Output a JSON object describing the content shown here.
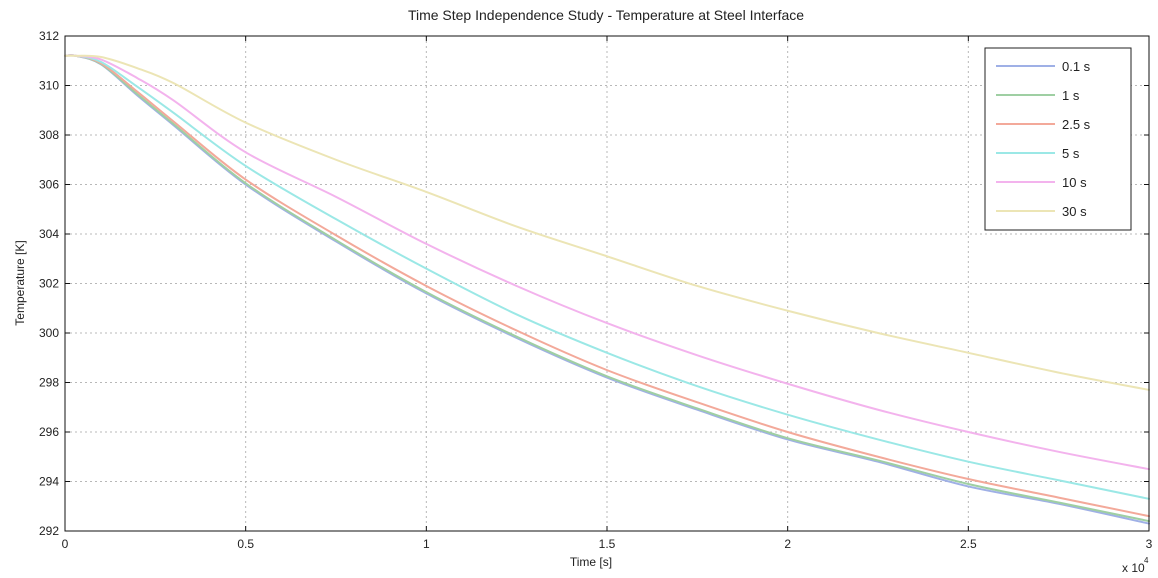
{
  "chart_data": {
    "type": "line",
    "title": "Time Step Independence Study - Temperature at Steel Interface",
    "xlabel": "Time [s]",
    "ylabel": "Temperature [K]",
    "x_multiplier_label": "x 10",
    "x_multiplier_exponent": "4",
    "xlim": [
      0,
      3
    ],
    "ylim": [
      292,
      312
    ],
    "x_ticks": [
      0,
      0.5,
      1,
      1.5,
      2,
      2.5,
      3
    ],
    "x_tick_labels": [
      "0",
      "0.5",
      "1",
      "1.5",
      "2",
      "2.5",
      "3"
    ],
    "y_ticks": [
      292,
      294,
      296,
      298,
      300,
      302,
      304,
      306,
      308,
      310,
      312
    ],
    "y_tick_labels": [
      "292",
      "294",
      "296",
      "298",
      "300",
      "302",
      "304",
      "306",
      "308",
      "310",
      "312"
    ],
    "grid": true,
    "legend_position": "top-right",
    "series": [
      {
        "name": "0.1 s",
        "color": "#9fb0e6",
        "x": [
          0,
          0.03,
          0.1,
          0.2,
          0.3,
          0.5,
          0.75,
          1,
          1.25,
          1.5,
          1.75,
          2,
          2.25,
          2.5,
          2.75,
          3
        ],
        "y": [
          311.2,
          311.2,
          310.85,
          309.6,
          308.4,
          306,
          303.7,
          301.6,
          299.8,
          298.2,
          296.9,
          295.7,
          294.8,
          293.8,
          293.1,
          292.3
        ]
      },
      {
        "name": "1 s",
        "color": "#9fcfa3",
        "x": [
          0,
          0.03,
          0.1,
          0.2,
          0.3,
          0.5,
          0.75,
          1,
          1.25,
          1.5,
          1.75,
          2,
          2.25,
          2.5,
          2.75,
          3
        ],
        "y": [
          311.2,
          311.2,
          310.87,
          309.65,
          308.45,
          306.05,
          303.75,
          301.65,
          299.85,
          298.25,
          296.95,
          295.75,
          294.85,
          293.9,
          293.15,
          292.4
        ]
      },
      {
        "name": "2.5 s",
        "color": "#f3a99a",
        "x": [
          0,
          0.03,
          0.1,
          0.2,
          0.3,
          0.5,
          0.75,
          1,
          1.25,
          1.5,
          1.75,
          2,
          2.25,
          2.5,
          2.75,
          3
        ],
        "y": [
          311.2,
          311.2,
          310.9,
          309.75,
          308.55,
          306.2,
          303.95,
          301.9,
          300.1,
          298.5,
          297.2,
          296,
          295,
          294.1,
          293.35,
          292.6
        ]
      },
      {
        "name": "5 s",
        "color": "#9be8e6",
        "x": [
          0,
          0.03,
          0.1,
          0.2,
          0.3,
          0.5,
          0.75,
          1,
          1.25,
          1.5,
          1.75,
          2,
          2.25,
          2.5,
          2.75,
          3
        ],
        "y": [
          311.2,
          311.2,
          310.95,
          309.95,
          308.9,
          306.75,
          304.6,
          302.6,
          300.75,
          299.2,
          297.85,
          296.7,
          295.7,
          294.8,
          294.05,
          293.3
        ]
      },
      {
        "name": "10 s",
        "color": "#f3b3ed",
        "x": [
          0,
          0.03,
          0.1,
          0.2,
          0.3,
          0.5,
          0.75,
          1,
          1.25,
          1.5,
          1.75,
          2,
          2.25,
          2.5,
          2.75,
          3
        ],
        "y": [
          311.2,
          311.2,
          311.05,
          310.3,
          309.4,
          307.3,
          305.5,
          303.6,
          301.9,
          300.4,
          299.1,
          297.95,
          296.9,
          296,
          295.2,
          294.5
        ]
      },
      {
        "name": "30 s",
        "color": "#ece5b5",
        "x": [
          0,
          0.03,
          0.1,
          0.2,
          0.3,
          0.5,
          0.75,
          1,
          1.25,
          1.5,
          1.75,
          2,
          2.25,
          2.5,
          2.75,
          3
        ],
        "y": [
          311.2,
          311.2,
          311.15,
          310.7,
          310.1,
          308.5,
          307,
          305.7,
          304.3,
          303.1,
          301.9,
          300.9,
          300,
          299.2,
          298.4,
          297.7
        ]
      }
    ]
  }
}
